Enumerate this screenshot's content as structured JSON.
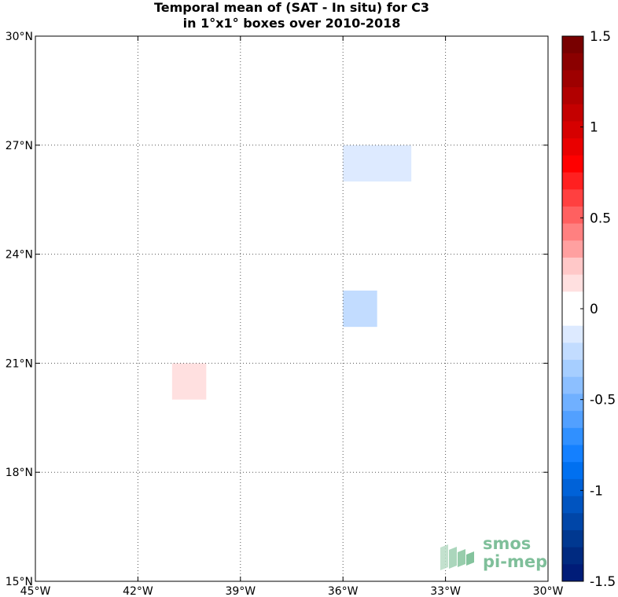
{
  "title_lines": [
    "Temporal mean of (SAT - In situ) for C3",
    "in 1°x1° boxes over 2010-2018"
  ],
  "chart_data": {
    "type": "heatmap",
    "title": "Temporal mean of (SAT - In situ) for C3 in 1°x1° boxes over 2010-2018",
    "xlabel": "",
    "ylabel": "",
    "x_units": "degrees longitude (negative = W)",
    "y_units": "degrees latitude (N)",
    "xlim": [
      -45,
      -30
    ],
    "ylim": [
      15,
      30
    ],
    "x_ticks": [
      -45,
      -42,
      -39,
      -36,
      -33,
      -30
    ],
    "x_tick_labels": [
      "45°W",
      "42°W",
      "39°W",
      "36°W",
      "33°W",
      "30°W"
    ],
    "y_ticks": [
      15,
      18,
      21,
      24,
      27,
      30
    ],
    "y_tick_labels": [
      "15°N",
      "18°N",
      "21°N",
      "24°N",
      "27°N",
      "30°N"
    ],
    "grid": true,
    "cells": [
      {
        "lon_min": -36,
        "lon_max": -34,
        "lat_min": 26,
        "lat_max": 27,
        "value": -0.1
      },
      {
        "lon_min": -36,
        "lon_max": -35,
        "lat_min": 22,
        "lat_max": 23,
        "value": -0.2
      },
      {
        "lon_min": -41,
        "lon_max": -40,
        "lat_min": 20,
        "lat_max": 21,
        "value": 0.1
      }
    ],
    "colorbar": {
      "min": -1.5,
      "max": 1.5,
      "ticks": [
        1.5,
        1,
        0.5,
        0,
        -0.5,
        -1,
        -1.5
      ],
      "tick_labels": [
        "1.5",
        "1",
        "0.5",
        "0",
        "-0.5",
        "-1",
        "-1.5"
      ],
      "colors_top_to_bottom": [
        "#780000",
        "#8b0000",
        "#9e0000",
        "#b10000",
        "#c40000",
        "#d60000",
        "#e90000",
        "#ff0000",
        "#ff2020",
        "#ff4040",
        "#ff6060",
        "#ff8080",
        "#ffa0a0",
        "#ffc8c8",
        "#ffe0e0",
        "#ffffff",
        "#ffffff",
        "#ddeaff",
        "#c2dcff",
        "#a6ceff",
        "#8cbfff",
        "#70b0ff",
        "#52a0ff",
        "#3090ff",
        "#1480ff",
        "#0070f0",
        "#0062d8",
        "#0054c0",
        "#0046a8",
        "#003890",
        "#002a80",
        "#001c78"
      ]
    }
  },
  "logo": {
    "line1": "smos",
    "line2": "pi-mep",
    "color": "#7fbf9a"
  }
}
